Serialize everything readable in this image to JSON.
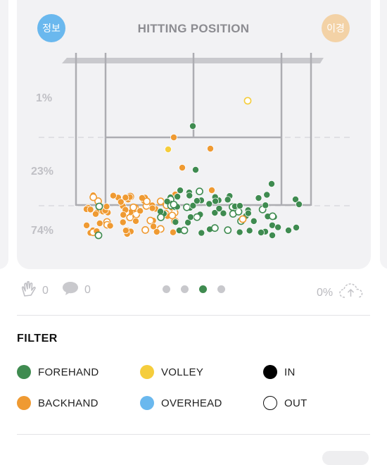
{
  "card": {
    "title": "HITTING POSITION",
    "badge_left": "정보",
    "badge_right": "이경",
    "percent_labels": [
      "1%",
      "23%",
      "74%"
    ]
  },
  "stats": {
    "likes_icon": "clap-icon",
    "likes_count": "0",
    "comments_icon": "speech-bubble-icon",
    "comments_count": "0",
    "upload_percent": "0%",
    "upload_icon": "cloud-upload-icon",
    "page_count": 4,
    "active_page": 3
  },
  "filter": {
    "title": "FILTER",
    "items": [
      {
        "label": "FOREHAND",
        "color": "#3f8b50"
      },
      {
        "label": "VOLLEY",
        "color": "#f5cd3c"
      },
      {
        "label": "IN",
        "color": "#000000"
      },
      {
        "label": "BACKHAND",
        "color": "#ef9a32"
      },
      {
        "label": "OVERHEAD",
        "color": "#6ab8ee"
      },
      {
        "label": "OUT",
        "color": "#ffffff"
      }
    ]
  },
  "colors": {
    "forehand": "#3f8b50",
    "backhand": "#ef9a32",
    "volley": "#f5cd3c",
    "court_line": "#adadb2",
    "text_muted": "#b9b9be"
  }
}
